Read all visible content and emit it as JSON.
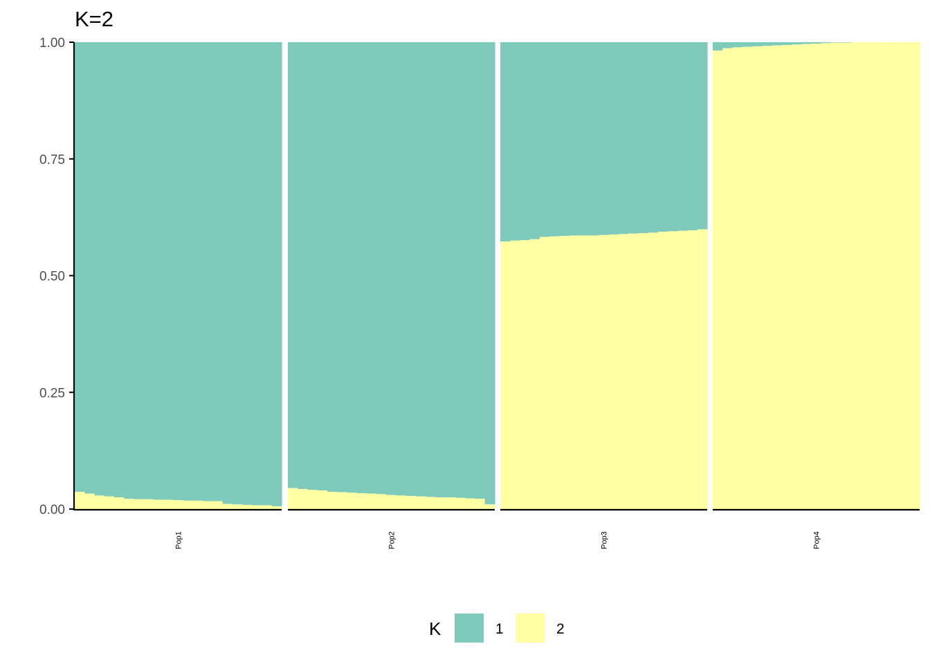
{
  "chart_data": {
    "type": "bar",
    "subtype": "stacked-admixture",
    "title": "K=2",
    "xlabel": "",
    "ylabel": "",
    "ylim": [
      0,
      1
    ],
    "yticks": [
      "0.00",
      "0.25",
      "0.50",
      "0.75",
      "1.00"
    ],
    "grid": false,
    "legend": {
      "title": "K",
      "position": "bottom",
      "entries": [
        {
          "label": "1",
          "color": "#7FCBBB"
        },
        {
          "label": "2",
          "color": "#FFFFA3"
        }
      ]
    },
    "panels": [
      {
        "label": "Pop1",
        "k2_values": [
          0.037,
          0.033,
          0.029,
          0.027,
          0.025,
          0.022,
          0.021,
          0.021,
          0.02,
          0.02,
          0.019,
          0.018,
          0.018,
          0.017,
          0.017,
          0.011,
          0.01,
          0.009,
          0.008,
          0.008,
          0.006
        ]
      },
      {
        "label": "Pop2",
        "k2_values": [
          0.045,
          0.043,
          0.041,
          0.04,
          0.037,
          0.036,
          0.035,
          0.034,
          0.033,
          0.032,
          0.03,
          0.029,
          0.028,
          0.027,
          0.026,
          0.025,
          0.025,
          0.024,
          0.023,
          0.022,
          0.01
        ]
      },
      {
        "label": "Pop3",
        "k2_values": [
          0.573,
          0.575,
          0.576,
          0.578,
          0.583,
          0.584,
          0.585,
          0.586,
          0.586,
          0.586,
          0.587,
          0.588,
          0.589,
          0.59,
          0.591,
          0.592,
          0.594,
          0.595,
          0.596,
          0.597,
          0.599
        ]
      },
      {
        "label": "Pop4",
        "k2_values": [
          0.982,
          0.987,
          0.989,
          0.99,
          0.991,
          0.992,
          0.993,
          0.994,
          0.995,
          0.996,
          0.997,
          0.998,
          0.999,
          0.999,
          1.0,
          1.0,
          1.0,
          1.0,
          1.0,
          1.0,
          1.0
        ]
      }
    ]
  }
}
